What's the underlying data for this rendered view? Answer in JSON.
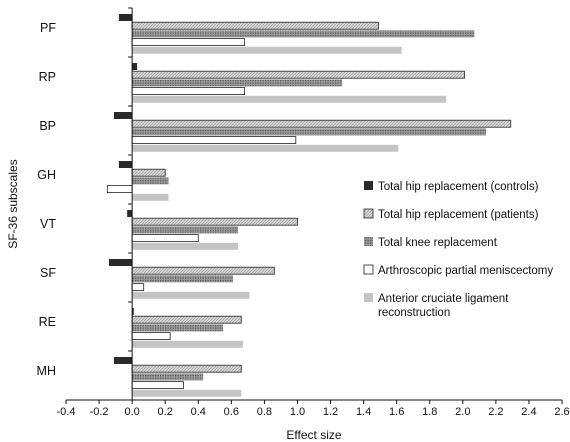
{
  "chart_data": {
    "type": "bar",
    "orientation": "horizontal",
    "title": "",
    "xlabel": "Effect size",
    "ylabel": "SF-36 subscales",
    "xlim": [
      -0.4,
      2.6
    ],
    "xticks": [
      "-0.4",
      "-0.2",
      "0.0",
      "0.2",
      "0.4",
      "0.6",
      "0.8",
      "1.0",
      "1.2",
      "1.4",
      "1.6",
      "1.8",
      "2.0",
      "2.2",
      "2.4",
      "2.6"
    ],
    "categories": [
      "PF",
      "RP",
      "BP",
      "GH",
      "VT",
      "SF",
      "RE",
      "MH"
    ],
    "grid": false,
    "legend_position": "right",
    "series": [
      {
        "name": "Total hip replacement (controls)",
        "color": "#2a2a2a",
        "pattern": "solid-dark",
        "values": [
          -0.08,
          0.03,
          -0.11,
          -0.08,
          -0.03,
          -0.14,
          0.01,
          -0.11
        ]
      },
      {
        "name": "Total hip replacement (patients)",
        "color": "#cfcfcf",
        "pattern": "light-hatch",
        "values": [
          1.49,
          2.01,
          2.29,
          0.2,
          1.0,
          0.86,
          0.66,
          0.66
        ]
      },
      {
        "name": "Total knee replacement",
        "color": "#8a8a8a",
        "pattern": "dark-dots",
        "values": [
          2.07,
          1.27,
          2.14,
          0.22,
          0.64,
          0.61,
          0.55,
          0.43
        ]
      },
      {
        "name": "Arthroscopic partial meniscectomy",
        "color": "#ffffff",
        "pattern": "outline",
        "values": [
          0.68,
          0.68,
          0.99,
          -0.15,
          0.4,
          0.07,
          0.23,
          0.31
        ]
      },
      {
        "name": "Anterior cruciate ligament reconstruction",
        "color": "#c4c4c4",
        "pattern": "solid-light",
        "values": [
          1.63,
          1.9,
          1.61,
          0.22,
          0.64,
          0.71,
          0.67,
          0.66
        ]
      }
    ]
  }
}
